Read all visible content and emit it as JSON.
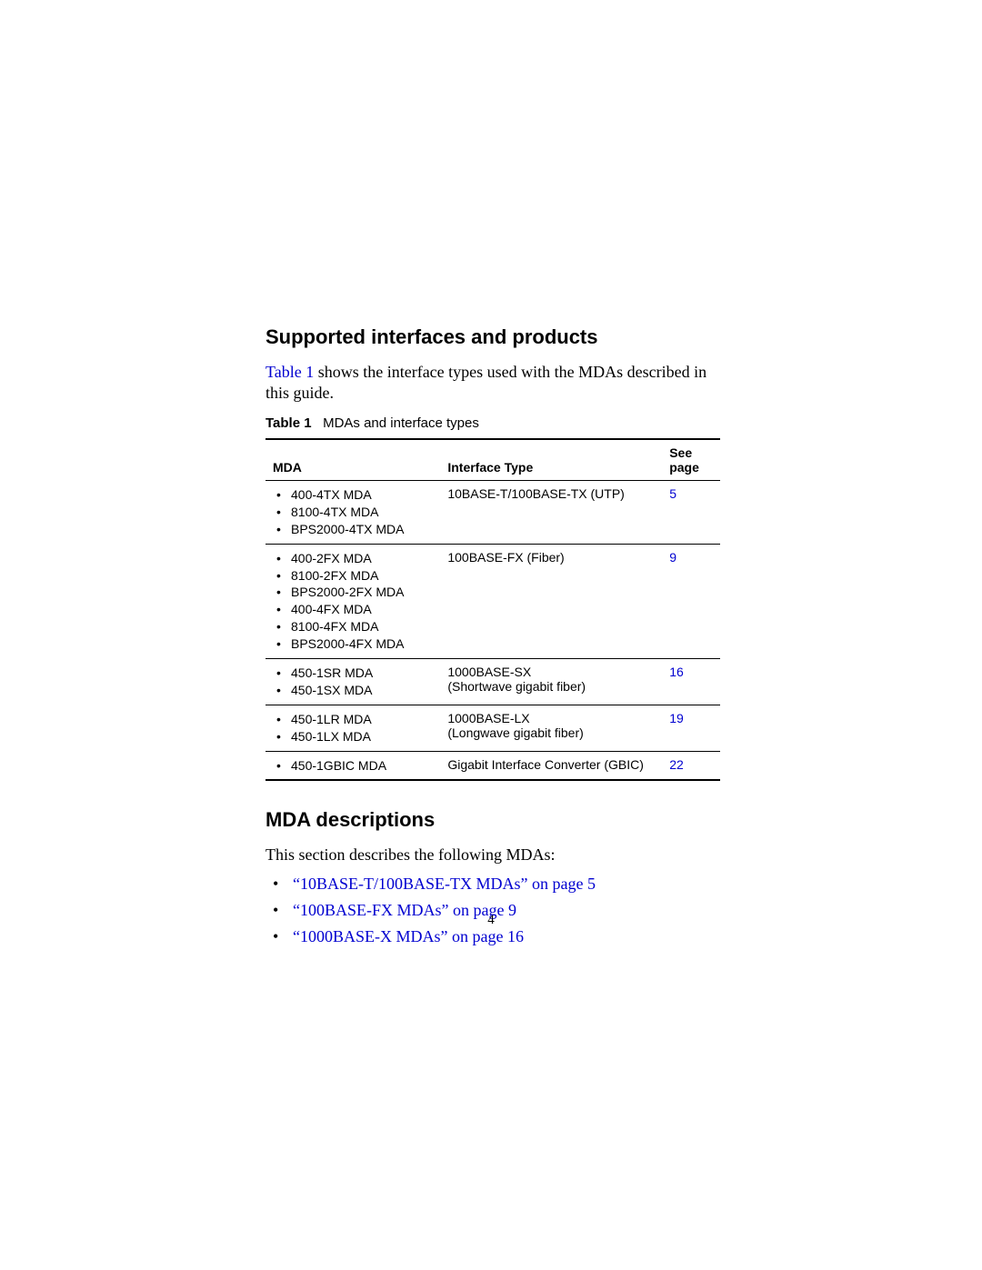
{
  "section1": {
    "heading": "Supported interfaces and products",
    "intro_pre": "",
    "intro_link": "Table 1",
    "intro_post": " shows the interface types used with the MDAs described in this guide."
  },
  "table": {
    "caption_label": "Table 1",
    "caption_text": "MDAs and interface types",
    "headers": {
      "mda": "MDA",
      "iftype": "Interface Type",
      "page": "See page"
    },
    "rows": [
      {
        "mdas": [
          "400-4TX MDA",
          "8100-4TX MDA",
          "BPS2000-4TX MDA"
        ],
        "iftype": "10BASE-T/100BASE-TX (UTP)",
        "iftype_sub": "",
        "page": "5"
      },
      {
        "mdas": [
          "400-2FX MDA",
          "8100-2FX MDA",
          "BPS2000-2FX MDA",
          "400-4FX MDA",
          "8100-4FX MDA",
          "BPS2000-4FX MDA"
        ],
        "iftype": "100BASE-FX (Fiber)",
        "iftype_sub": "",
        "page": "9"
      },
      {
        "mdas": [
          "450-1SR MDA",
          "450-1SX MDA"
        ],
        "iftype": "1000BASE-SX",
        "iftype_sub": "(Shortwave gigabit fiber)",
        "page": "16"
      },
      {
        "mdas": [
          "450-1LR MDA",
          "450-1LX MDA"
        ],
        "iftype": "1000BASE-LX",
        "iftype_sub": "(Longwave gigabit fiber)",
        "page": "19"
      },
      {
        "mdas": [
          "450-1GBIC MDA"
        ],
        "iftype": "Gigabit Interface Converter (GBIC)",
        "iftype_sub": "",
        "page": "22"
      }
    ]
  },
  "section2": {
    "heading": "MDA descriptions",
    "intro": "This section describes the following MDAs:",
    "items": [
      "“10BASE-T/100BASE-TX MDAs” on page 5",
      "“100BASE-FX MDAs” on page 9",
      "“1000BASE-X MDAs” on page 16"
    ]
  },
  "page_number": "4",
  "colors": {
    "link": "#0000d0",
    "text": "#000000",
    "background": "#ffffff"
  }
}
